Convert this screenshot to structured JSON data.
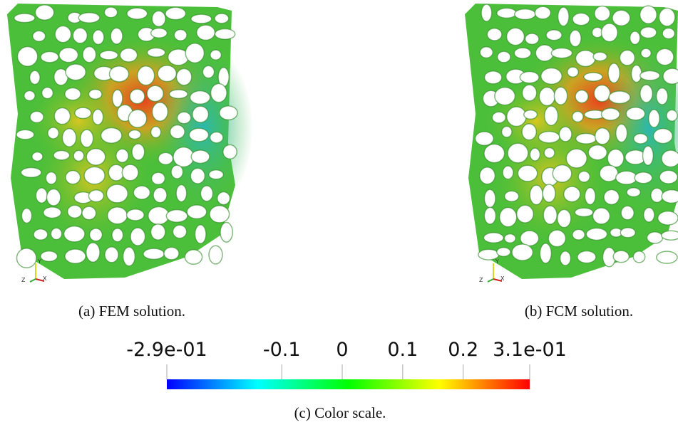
{
  "panels": [
    {
      "caption": "(a) FEM solution.",
      "axes": [
        "Y",
        "Z",
        "X"
      ]
    },
    {
      "caption": "(b) FCM solution.",
      "axes": [
        "Y",
        "Z",
        "X"
      ]
    }
  ],
  "colorbar": {
    "range": [
      -0.29,
      0.31
    ],
    "ticks": [
      {
        "value": -0.29,
        "label": "-2.9e-01"
      },
      -0.1,
      0,
      0.1,
      0.2,
      {
        "value": 0.31,
        "label": "3.1e-01"
      }
    ],
    "colors": [
      "#0000ff",
      "#00ffff",
      "#00ff00",
      "#ffff00",
      "#ff0000"
    ],
    "caption": "(c) Color scale."
  }
}
